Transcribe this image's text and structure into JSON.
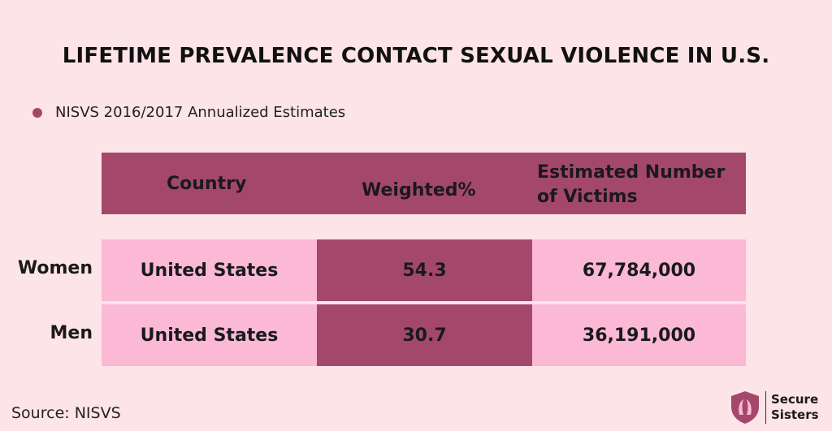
{
  "chart_data": {
    "type": "table",
    "title": "LIFETIME PREVALENCE CONTACT SEXUAL VIOLENCE IN U.S.",
    "legend": {
      "label": "NISVS 2016/2017 Annualized Estimates",
      "color": "#a4486b",
      "placement": "top-left"
    },
    "columns": [
      "Country",
      "Weighted%",
      "Estimated Number",
      "of Victims"
    ],
    "rows": [
      {
        "label": "Women",
        "country": "United States",
        "weighted": "54.3",
        "estimated": "67,784,000"
      },
      {
        "label": "Men",
        "country": "United States",
        "weighted": "30.7",
        "estimated": "36,191,000"
      }
    ]
  },
  "source": "Source: NISVS",
  "brand": {
    "line1": "Secure",
    "line2": "Sisters",
    "icon": "shield-logo-icon"
  },
  "colors": {
    "background": "#fde4e8",
    "header": "#a4486b",
    "cell_light": "#fbb9d6",
    "cell_dark": "#a4486b"
  }
}
